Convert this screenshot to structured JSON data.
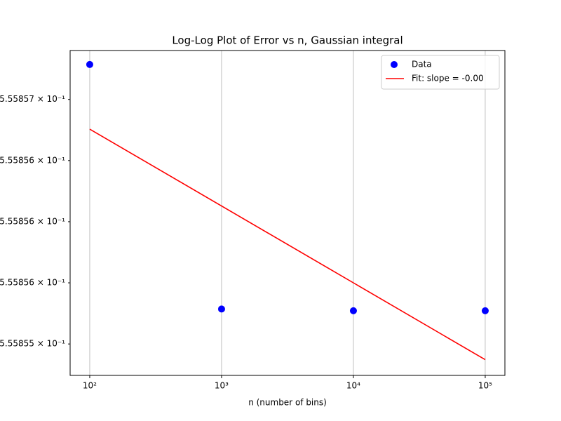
{
  "chart_data": {
    "type": "line",
    "title": "Log-Log Plot of Error vs n, Gaussian integral",
    "xlabel": "n (number of bins)",
    "xscale": "log",
    "yscale": "log",
    "x": [
      100,
      1000,
      10000,
      100000
    ],
    "series": [
      {
        "name": "Data",
        "color": "#0000ff",
        "style": "markers",
        "values": [
          0.5558568,
          0.5558554,
          0.55585539,
          0.55585539
        ]
      },
      {
        "name": "Fit: slope = -0.00",
        "color": "#ff0000",
        "style": "line",
        "x": [
          100,
          100000
        ],
        "values": [
          0.55585643,
          0.55585511
        ]
      }
    ],
    "xlim": [
      71,
      141000
    ],
    "ylim": [
      0.55585502,
      0.55585688
    ],
    "xticks": [
      {
        "value": 100,
        "label": "10²"
      },
      {
        "value": 1000,
        "label": "10³"
      },
      {
        "value": 10000,
        "label": "10⁴"
      },
      {
        "value": 100000,
        "label": "10⁵"
      }
    ],
    "yticks": [
      {
        "value": 0.5558566,
        "label": "5.55857 × 10⁻¹"
      },
      {
        "value": 0.55585625,
        "label": "5.55856 × 10⁻¹"
      },
      {
        "value": 0.5558559,
        "label": "5.55856 × 10⁻¹"
      },
      {
        "value": 0.55585555,
        "label": "5.55856 × 10⁻¹"
      },
      {
        "value": 0.5558552,
        "label": "5.55855 × 10⁻¹"
      }
    ],
    "grid": "x",
    "legend": "upper right"
  }
}
